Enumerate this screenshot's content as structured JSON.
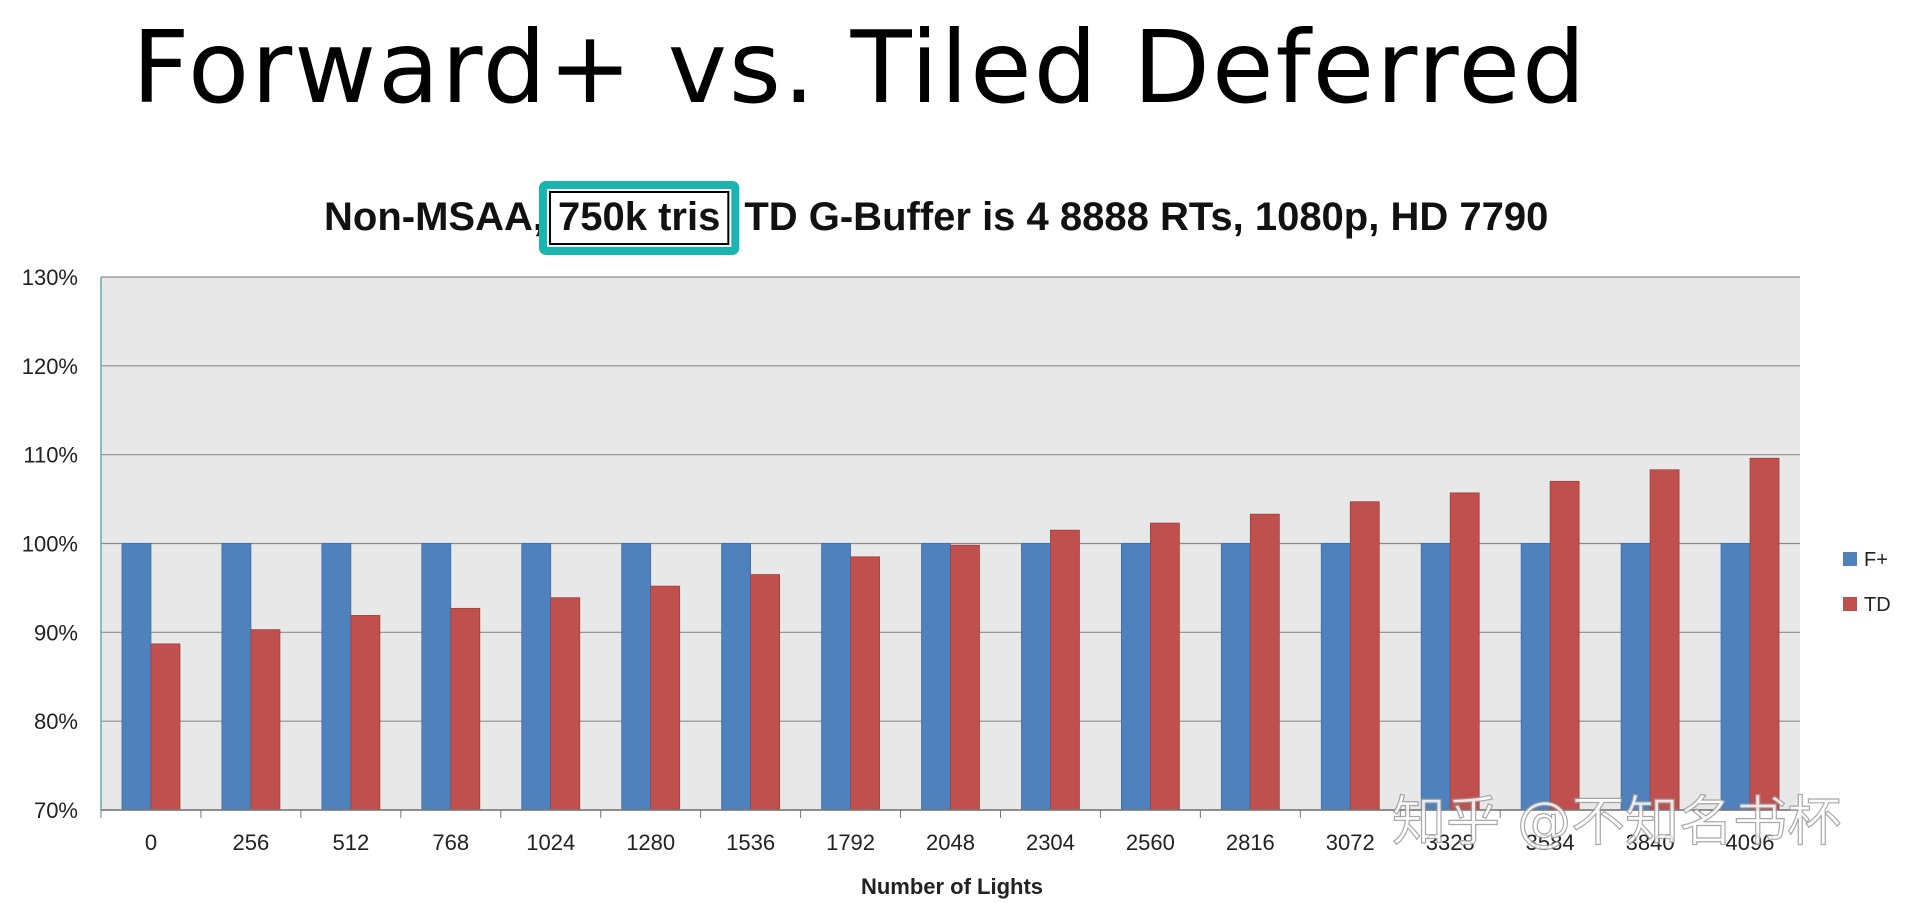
{
  "slide": {
    "title": "Forward+ vs. Tiled Deferred"
  },
  "watermark": "知乎 @不知名书杯",
  "chart_data": {
    "type": "bar",
    "title": "Non-MSAA, 750k tris, TD G-Buffer is 4 8888 RTs, 1080p, HD 7790",
    "title_parts": {
      "before": "Non-MSAA,",
      "highlight": "750k tris",
      "after": "TD G-Buffer is 4 8888 RTs, 1080p, HD 7790"
    },
    "highlight_color": "#1ab5b0",
    "xlabel": "Number of Lights",
    "ylabel": "",
    "ylim": [
      70,
      130
    ],
    "yticks": [
      70,
      80,
      90,
      100,
      110,
      120,
      130
    ],
    "ytick_labels": [
      "70%",
      "80%",
      "90%",
      "100%",
      "110%",
      "120%",
      "130%"
    ],
    "grid": true,
    "legend_position": "right",
    "categories": [
      "0",
      "256",
      "512",
      "768",
      "1024",
      "1280",
      "1536",
      "1792",
      "2048",
      "2304",
      "2560",
      "2816",
      "3072",
      "3328",
      "3584",
      "3840",
      "4096"
    ],
    "series": [
      {
        "name": "F+",
        "color": "#4f81bd",
        "values": [
          100,
          100,
          100,
          100,
          100,
          100,
          100,
          100,
          100,
          100,
          100,
          100,
          100,
          100,
          100,
          100,
          100
        ]
      },
      {
        "name": "TD",
        "color": "#c0504d",
        "values": [
          88.7,
          90.3,
          91.9,
          92.7,
          93.9,
          95.2,
          96.5,
          98.5,
          99.8,
          101.5,
          102.3,
          103.3,
          104.7,
          105.7,
          107.0,
          108.3,
          109.6
        ]
      }
    ]
  }
}
